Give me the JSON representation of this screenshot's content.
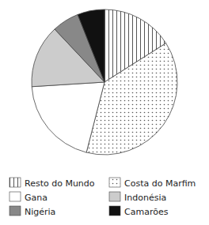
{
  "chart_data": {
    "type": "pie",
    "categories": [
      "Resto do Mundo",
      "Costa do Marfim",
      "Gana",
      "Indonésia",
      "Nigéria",
      "Camarões"
    ],
    "values": [
      16,
      38,
      20,
      14,
      6,
      6
    ],
    "colors": [
      "white",
      "white",
      "white",
      "#cccccc",
      "#888888",
      "#111111"
    ],
    "legend": "bottom"
  }
}
